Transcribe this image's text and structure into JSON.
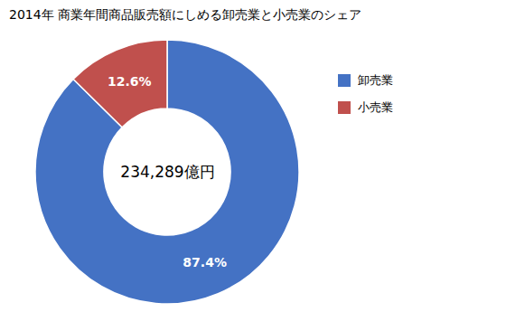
{
  "chart_data": {
    "type": "pie",
    "title": "2014年 商業年間商品販売額にしめる卸売業と小売業のシェア",
    "annotations": [
      "234,289億円"
    ],
    "categories": [
      "卸売業",
      "小売業"
    ],
    "values": [
      87.4,
      12.6
    ],
    "value_labels": [
      "87.4%",
      "12.6%"
    ],
    "colors": [
      "#4472C4",
      "#C0504D"
    ],
    "data_labels": true,
    "legend": "upper right"
  }
}
